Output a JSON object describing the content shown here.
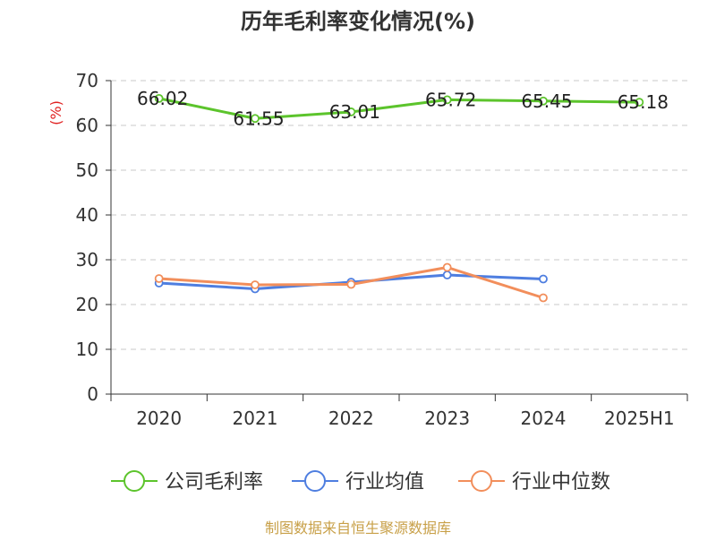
{
  "chart_data": {
    "type": "line",
    "title": "历年毛利率变化情况(%)",
    "ylabel": "(%)",
    "xlabel": "",
    "categories": [
      "2020",
      "2021",
      "2022",
      "2023",
      "2024",
      "2025H1"
    ],
    "ylim": [
      0,
      70
    ],
    "yticks": [
      0,
      10,
      20,
      30,
      40,
      50,
      60,
      70
    ],
    "grid": true,
    "legend_position": "bottom",
    "series": [
      {
        "name": "公司毛利率",
        "color": "#5cc42c",
        "values": [
          66.02,
          61.55,
          63.01,
          65.72,
          65.45,
          65.18
        ],
        "labels": [
          "66.02",
          "61.55",
          "63.01",
          "65.72",
          "65.45",
          "65.18"
        ]
      },
      {
        "name": "行业均值",
        "color": "#4e7ee0",
        "values": [
          24.8,
          23.5,
          25.0,
          26.6,
          25.7,
          null
        ]
      },
      {
        "name": "行业中位数",
        "color": "#f28e5b",
        "values": [
          25.8,
          24.4,
          24.5,
          28.3,
          21.5,
          null
        ]
      }
    ],
    "source": "制图数据来自恒生聚源数据库"
  }
}
